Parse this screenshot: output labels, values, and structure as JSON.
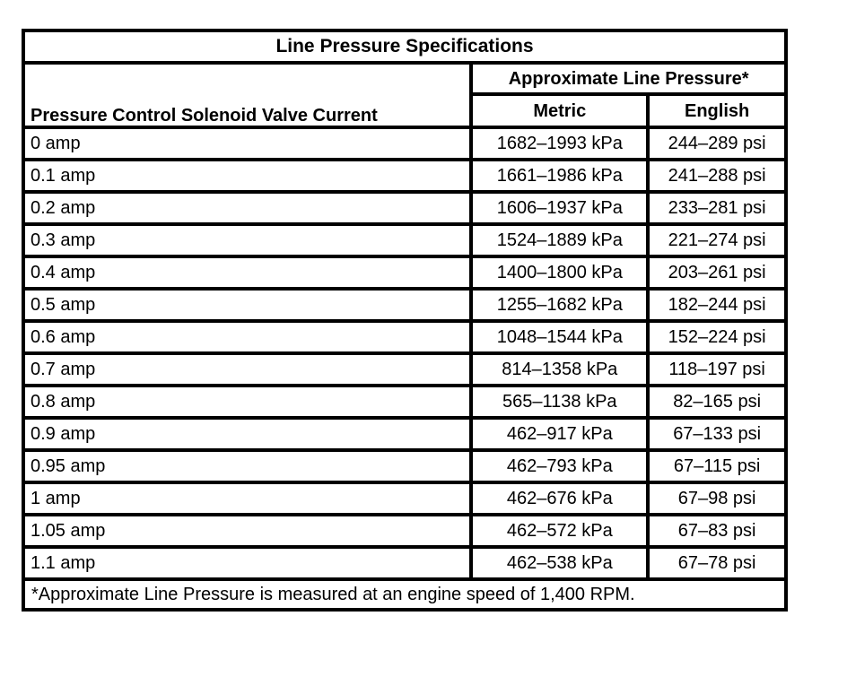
{
  "table": {
    "title": "Line Pressure Specifications",
    "headers": {
      "current": "Pressure Control Solenoid Valve Current",
      "pressure_group": "Approximate Line Pressure*",
      "metric": "Metric",
      "english": "English"
    },
    "rows": [
      {
        "current": "0 amp",
        "metric": "1682–1993 kPa",
        "english": "244–289 psi"
      },
      {
        "current": "0.1 amp",
        "metric": "1661–1986 kPa",
        "english": "241–288 psi"
      },
      {
        "current": "0.2 amp",
        "metric": "1606–1937 kPa",
        "english": "233–281 psi"
      },
      {
        "current": "0.3 amp",
        "metric": "1524–1889 kPa",
        "english": "221–274 psi"
      },
      {
        "current": "0.4 amp",
        "metric": "1400–1800 kPa",
        "english": "203–261 psi"
      },
      {
        "current": "0.5 amp",
        "metric": "1255–1682 kPa",
        "english": "182–244 psi"
      },
      {
        "current": "0.6 amp",
        "metric": "1048–1544 kPa",
        "english": "152–224 psi"
      },
      {
        "current": "0.7 amp",
        "metric": "814–1358 kPa",
        "english": "118–197 psi"
      },
      {
        "current": "0.8 amp",
        "metric": "565–1138 kPa",
        "english": "82–165 psi"
      },
      {
        "current": "0.9 amp",
        "metric": "462–917 kPa",
        "english": "67–133 psi"
      },
      {
        "current": "0.95 amp",
        "metric": "462–793 kPa",
        "english": "67–115 psi"
      },
      {
        "current": "1 amp",
        "metric": "462–676 kPa",
        "english": "67–98 psi"
      },
      {
        "current": "1.05 amp",
        "metric": "462–572 kPa",
        "english": "67–83 psi"
      },
      {
        "current": "1.1 amp",
        "metric": "462–538 kPa",
        "english": "67–78 psi"
      }
    ],
    "footnote": "*Approximate Line Pressure is measured at an engine speed of 1,400 RPM."
  }
}
